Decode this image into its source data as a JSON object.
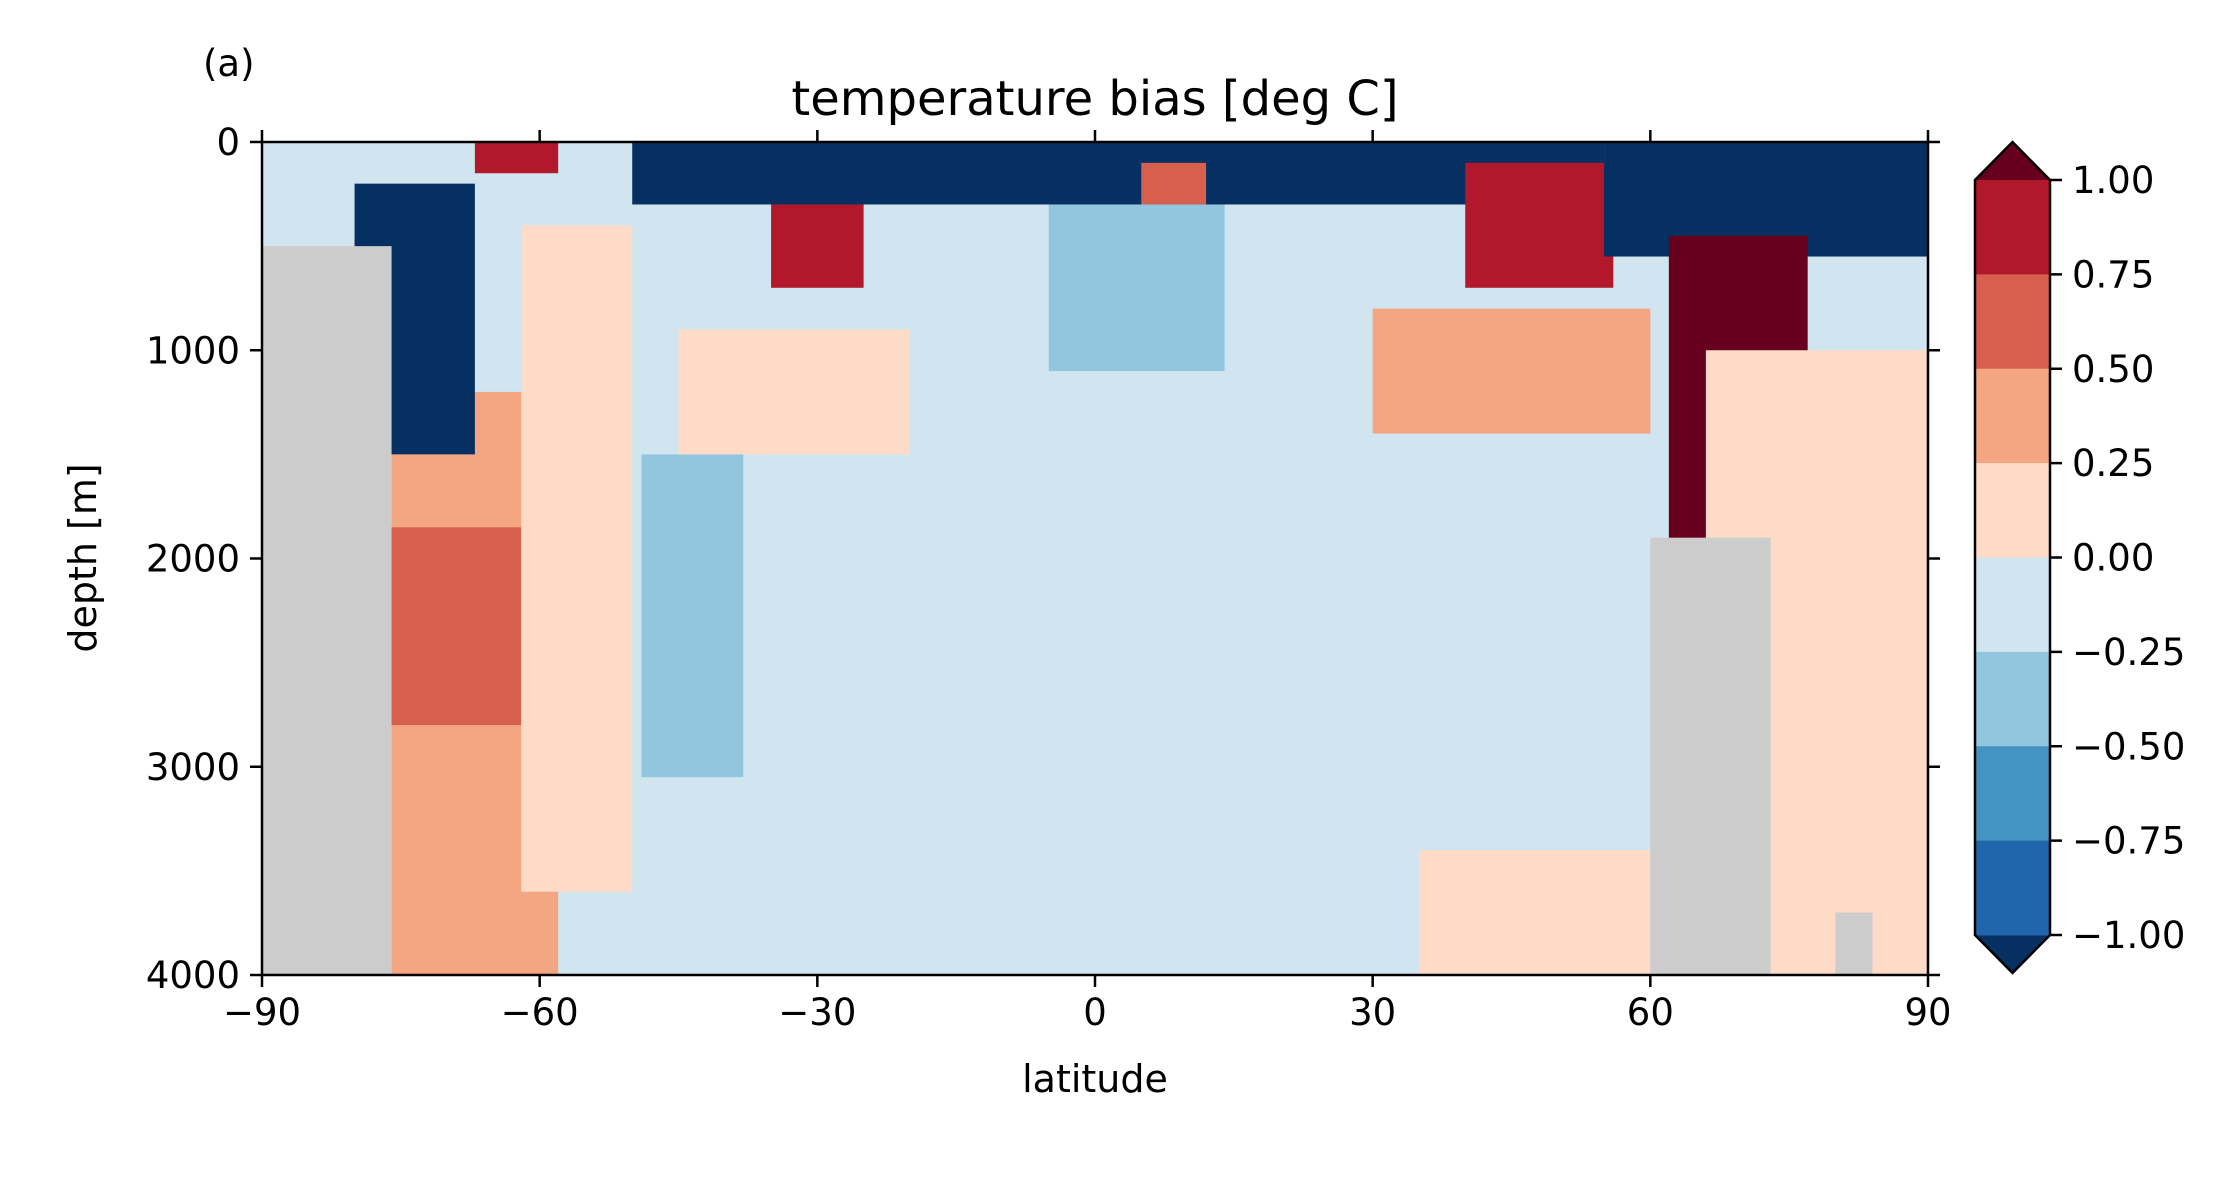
{
  "figure": {
    "panel_label": "(a)"
  },
  "chart_data": {
    "type": "heatmap",
    "title": "temperature bias [deg C]",
    "xlabel": "latitude",
    "ylabel": "depth [m]",
    "xlim": [
      -90,
      90
    ],
    "ylim": [
      4000,
      0
    ],
    "y_inverted": true,
    "xticks": [
      "−90",
      "−60",
      "−30",
      "0",
      "30",
      "60",
      "90"
    ],
    "xtick_values": [
      -90,
      -60,
      -30,
      0,
      30,
      60,
      90
    ],
    "yticks": [
      "0",
      "1000",
      "2000",
      "3000",
      "4000"
    ],
    "ytick_values": [
      0,
      1000,
      2000,
      3000,
      4000
    ],
    "grid": false,
    "mask_color": "#cccccc",
    "colorbar": {
      "extend": "both",
      "levels": [
        -1.0,
        -0.75,
        -0.5,
        -0.25,
        0.0,
        0.25,
        0.5,
        0.75,
        1.0
      ],
      "tick_labels": [
        "1.00",
        "0.75",
        "0.50",
        "0.25",
        "0.00",
        "−0.25",
        "−0.50",
        "−0.75",
        "−1.00"
      ],
      "colors_low_to_high": [
        "#053061",
        "#2166ac",
        "#4393c3",
        "#92c5de",
        "#d1e5f0",
        "#fddbc7",
        "#f4a582",
        "#d6604d",
        "#b2182b",
        "#67001f"
      ],
      "under_color": "#053061",
      "over_color": "#67001f"
    },
    "regions": [
      {
        "name": "deep-background",
        "value": -0.1,
        "lat": [
          -90,
          90
        ],
        "depth": [
          0,
          4000
        ]
      },
      {
        "name": "south-deep-warm",
        "value": 0.35,
        "lat": [
          -76,
          -58
        ],
        "depth": [
          1200,
          4000
        ]
      },
      {
        "name": "south-deep-warmer",
        "value": 0.6,
        "lat": [
          -80,
          -62
        ],
        "depth": [
          1850,
          2800
        ]
      },
      {
        "name": "south-mid-tongue",
        "value": 0.1,
        "lat": [
          -62,
          -50
        ],
        "depth": [
          400,
          3600
        ]
      },
      {
        "name": "south-cold-cell",
        "value": -1.05,
        "lat": [
          -80,
          -67
        ],
        "depth": [
          200,
          1500
        ]
      },
      {
        "name": "south-surface-warm",
        "value": 0.8,
        "lat": [
          -67,
          -58
        ],
        "depth": [
          0,
          150
        ]
      },
      {
        "name": "south-mid-cold-band",
        "value": -0.3,
        "lat": [
          -49,
          -38
        ],
        "depth": [
          1500,
          3050
        ]
      },
      {
        "name": "south-subtropic-warm",
        "value": 0.15,
        "lat": [
          -45,
          -20
        ],
        "depth": [
          900,
          1500
        ]
      },
      {
        "name": "south-subtropic-core",
        "value": 0.95,
        "lat": [
          -35,
          -25
        ],
        "depth": [
          300,
          700
        ]
      },
      {
        "name": "upper-cold-band",
        "value": -1.05,
        "lat": [
          -50,
          55
        ],
        "depth": [
          0,
          300
        ]
      },
      {
        "name": "equatorial-cold",
        "value": -0.3,
        "lat": [
          -5,
          14
        ],
        "depth": [
          300,
          1100
        ]
      },
      {
        "name": "equatorial-warm-blob",
        "value": 0.6,
        "lat": [
          5,
          12
        ],
        "depth": [
          100,
          300
        ]
      },
      {
        "name": "north-mid-warm",
        "value": 0.3,
        "lat": [
          30,
          60
        ],
        "depth": [
          800,
          1400
        ]
      },
      {
        "name": "north-subpolar-core",
        "value": 0.95,
        "lat": [
          40,
          56
        ],
        "depth": [
          100,
          700
        ]
      },
      {
        "name": "north-upper-cold",
        "value": -1.05,
        "lat": [
          55,
          90
        ],
        "depth": [
          0,
          550
        ]
      },
      {
        "name": "arctic-warm-core",
        "value": 1.1,
        "lat": [
          62,
          77
        ],
        "depth": [
          450,
          2000
        ]
      },
      {
        "name": "north-deep-warm",
        "value": 0.15,
        "lat": [
          66,
          90
        ],
        "depth": [
          1000,
          4000
        ]
      },
      {
        "name": "north-deep-warm-low",
        "value": 0.15,
        "lat": [
          35,
          60
        ],
        "depth": [
          3400,
          4000
        ]
      }
    ],
    "land_mask": [
      {
        "name": "antarctic-shelf",
        "lat": [
          -90,
          -76
        ],
        "depth": [
          500,
          4000
        ]
      },
      {
        "name": "north-ridge",
        "lat": [
          60,
          73
        ],
        "depth": [
          1900,
          4000
        ]
      },
      {
        "name": "north-ridge-bump",
        "lat": [
          80,
          84
        ],
        "depth": [
          3700,
          4000
        ]
      }
    ]
  }
}
